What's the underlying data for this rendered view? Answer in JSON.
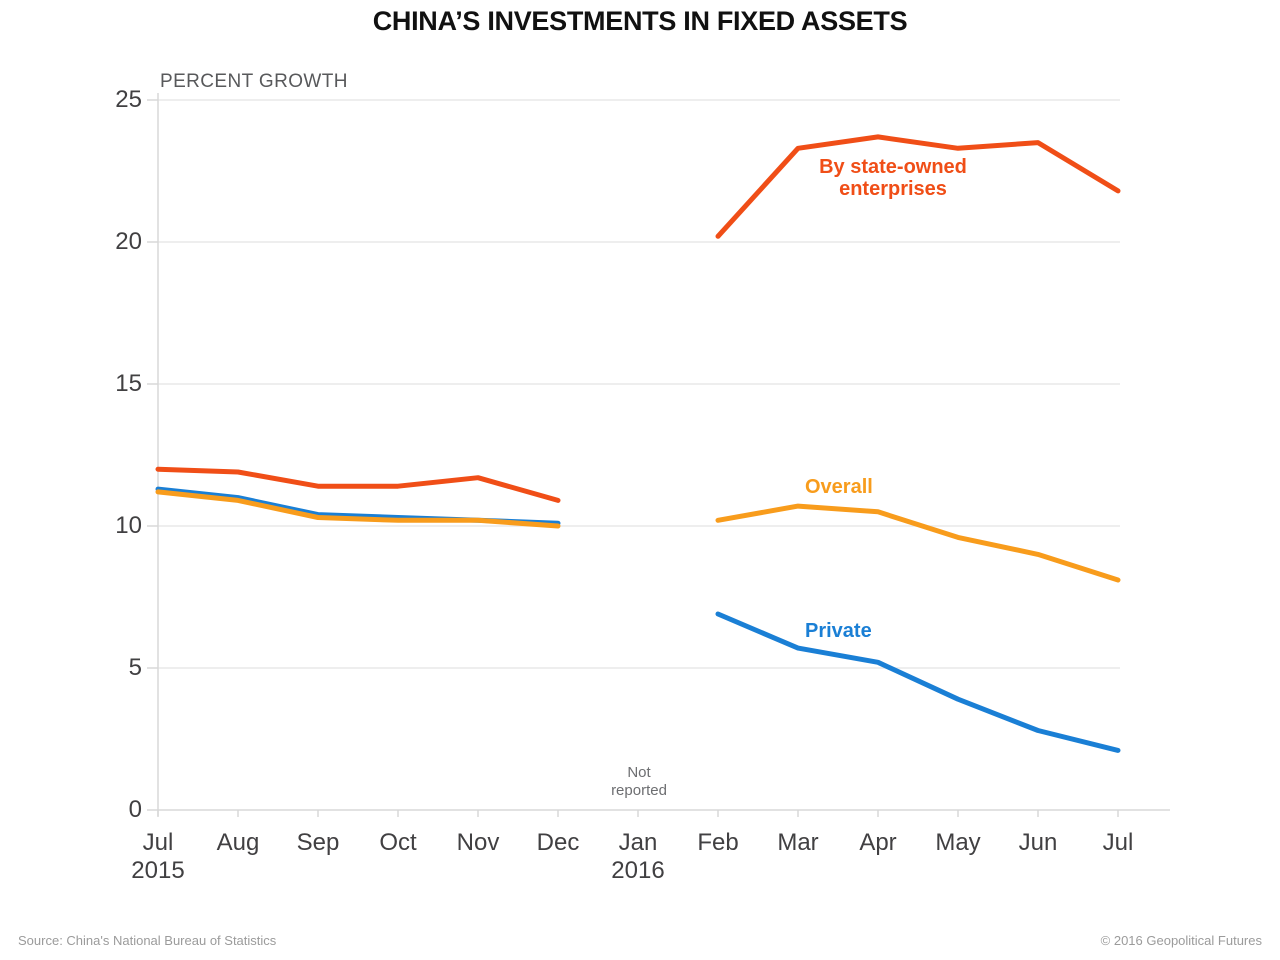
{
  "header": {
    "title": "CHINA’S INVESTMENTS IN FIXED ASSETS"
  },
  "footer": {
    "source": "Source: China's National Bureau of Statistics",
    "copyright": "© 2016 Geopolitical Futures"
  },
  "colors": {
    "grid": "#e9e9e9",
    "axis": "#d8d8d8",
    "tick_label": "#414042",
    "axis_unit": "#58595b",
    "gap_note": "#6d6e71",
    "footer": "#9b9b9b",
    "title": "#111111",
    "soe": "#f04e17",
    "overall": "#f89c1c",
    "private": "#1a7fd5"
  },
  "chart_data": {
    "type": "line",
    "title": "CHINA’S INVESTMENTS IN FIXED ASSETS",
    "ylabel": "PERCENT GROWTH",
    "xlabel": "",
    "ylim": [
      0,
      25
    ],
    "yticks": [
      0,
      5,
      10,
      15,
      20,
      25
    ],
    "grid": true,
    "legend": "inline-labels-on-lines",
    "x_labels": [
      "Jul",
      "Aug",
      "Sep",
      "Oct",
      "Nov",
      "Dec",
      "Jan",
      "Feb",
      "Mar",
      "Apr",
      "May",
      "Jun",
      "Jul"
    ],
    "x_year_labels": [
      {
        "index": 0,
        "label": "2015"
      },
      {
        "index": 6,
        "label": "2016"
      }
    ],
    "gap": {
      "index": 6,
      "label": "Not reported"
    },
    "series": [
      {
        "name": "By state-owned enterprises",
        "color": "#f04e17",
        "values": [
          12.0,
          11.9,
          11.4,
          11.4,
          11.7,
          10.9,
          null,
          20.2,
          23.3,
          23.7,
          23.3,
          23.5,
          21.8
        ]
      },
      {
        "name": "Overall",
        "color": "#f89c1c",
        "values": [
          11.2,
          10.9,
          10.3,
          10.2,
          10.2,
          10.0,
          null,
          10.2,
          10.7,
          10.5,
          9.6,
          9.0,
          8.1
        ]
      },
      {
        "name": "Private",
        "color": "#1a7fd5",
        "values": [
          11.3,
          11.0,
          10.4,
          10.3,
          10.2,
          10.1,
          null,
          6.9,
          5.7,
          5.2,
          3.9,
          2.8,
          2.1
        ]
      }
    ]
  }
}
